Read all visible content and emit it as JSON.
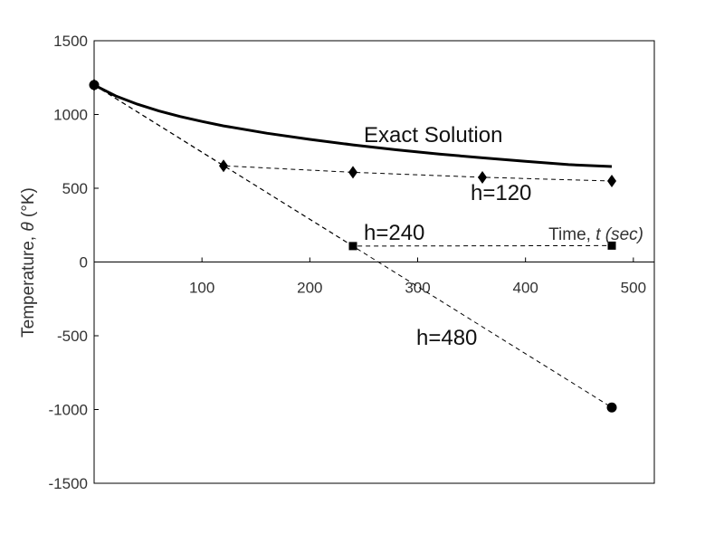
{
  "chart_data": {
    "type": "line",
    "title": "",
    "xlabel": {
      "plain": "Time, ",
      "var": "t",
      "unit": " (sec)"
    },
    "ylabel": {
      "plain": "Temperature, ",
      "var": "θ",
      "unit": " (°K)"
    },
    "xlim": [
      0,
      520
    ],
    "ylim": [
      -1500,
      1500
    ],
    "x_ticks": [
      100,
      200,
      300,
      400,
      500
    ],
    "y_ticks": [
      1500,
      1000,
      500,
      0,
      -500,
      -1000,
      -1500
    ],
    "grid": false,
    "series": [
      {
        "name": "Exact Solution",
        "style": "solid",
        "marker": "none",
        "points": [
          [
            0,
            1200
          ],
          [
            20,
            1126
          ],
          [
            40,
            1070
          ],
          [
            60,
            1024
          ],
          [
            80,
            986
          ],
          [
            100,
            953
          ],
          [
            120,
            923
          ],
          [
            160,
            873
          ],
          [
            200,
            831
          ],
          [
            240,
            794
          ],
          [
            280,
            761
          ],
          [
            320,
            732
          ],
          [
            360,
            706
          ],
          [
            400,
            682
          ],
          [
            440,
            660
          ],
          [
            480,
            647
          ]
        ]
      },
      {
        "name": "h=120",
        "style": "dashed",
        "marker": "diamond",
        "points": [
          [
            0,
            1200
          ],
          [
            120,
            652
          ],
          [
            240,
            608
          ],
          [
            360,
            574
          ],
          [
            480,
            549
          ]
        ]
      },
      {
        "name": "h=240",
        "style": "dashed",
        "marker": "square",
        "points": [
          [
            0,
            1200
          ],
          [
            240,
            108
          ],
          [
            480,
            111
          ]
        ]
      },
      {
        "name": "h=480",
        "style": "dashed",
        "marker": "circle",
        "points": [
          [
            0,
            1200
          ],
          [
            480,
            -986
          ]
        ]
      }
    ]
  }
}
